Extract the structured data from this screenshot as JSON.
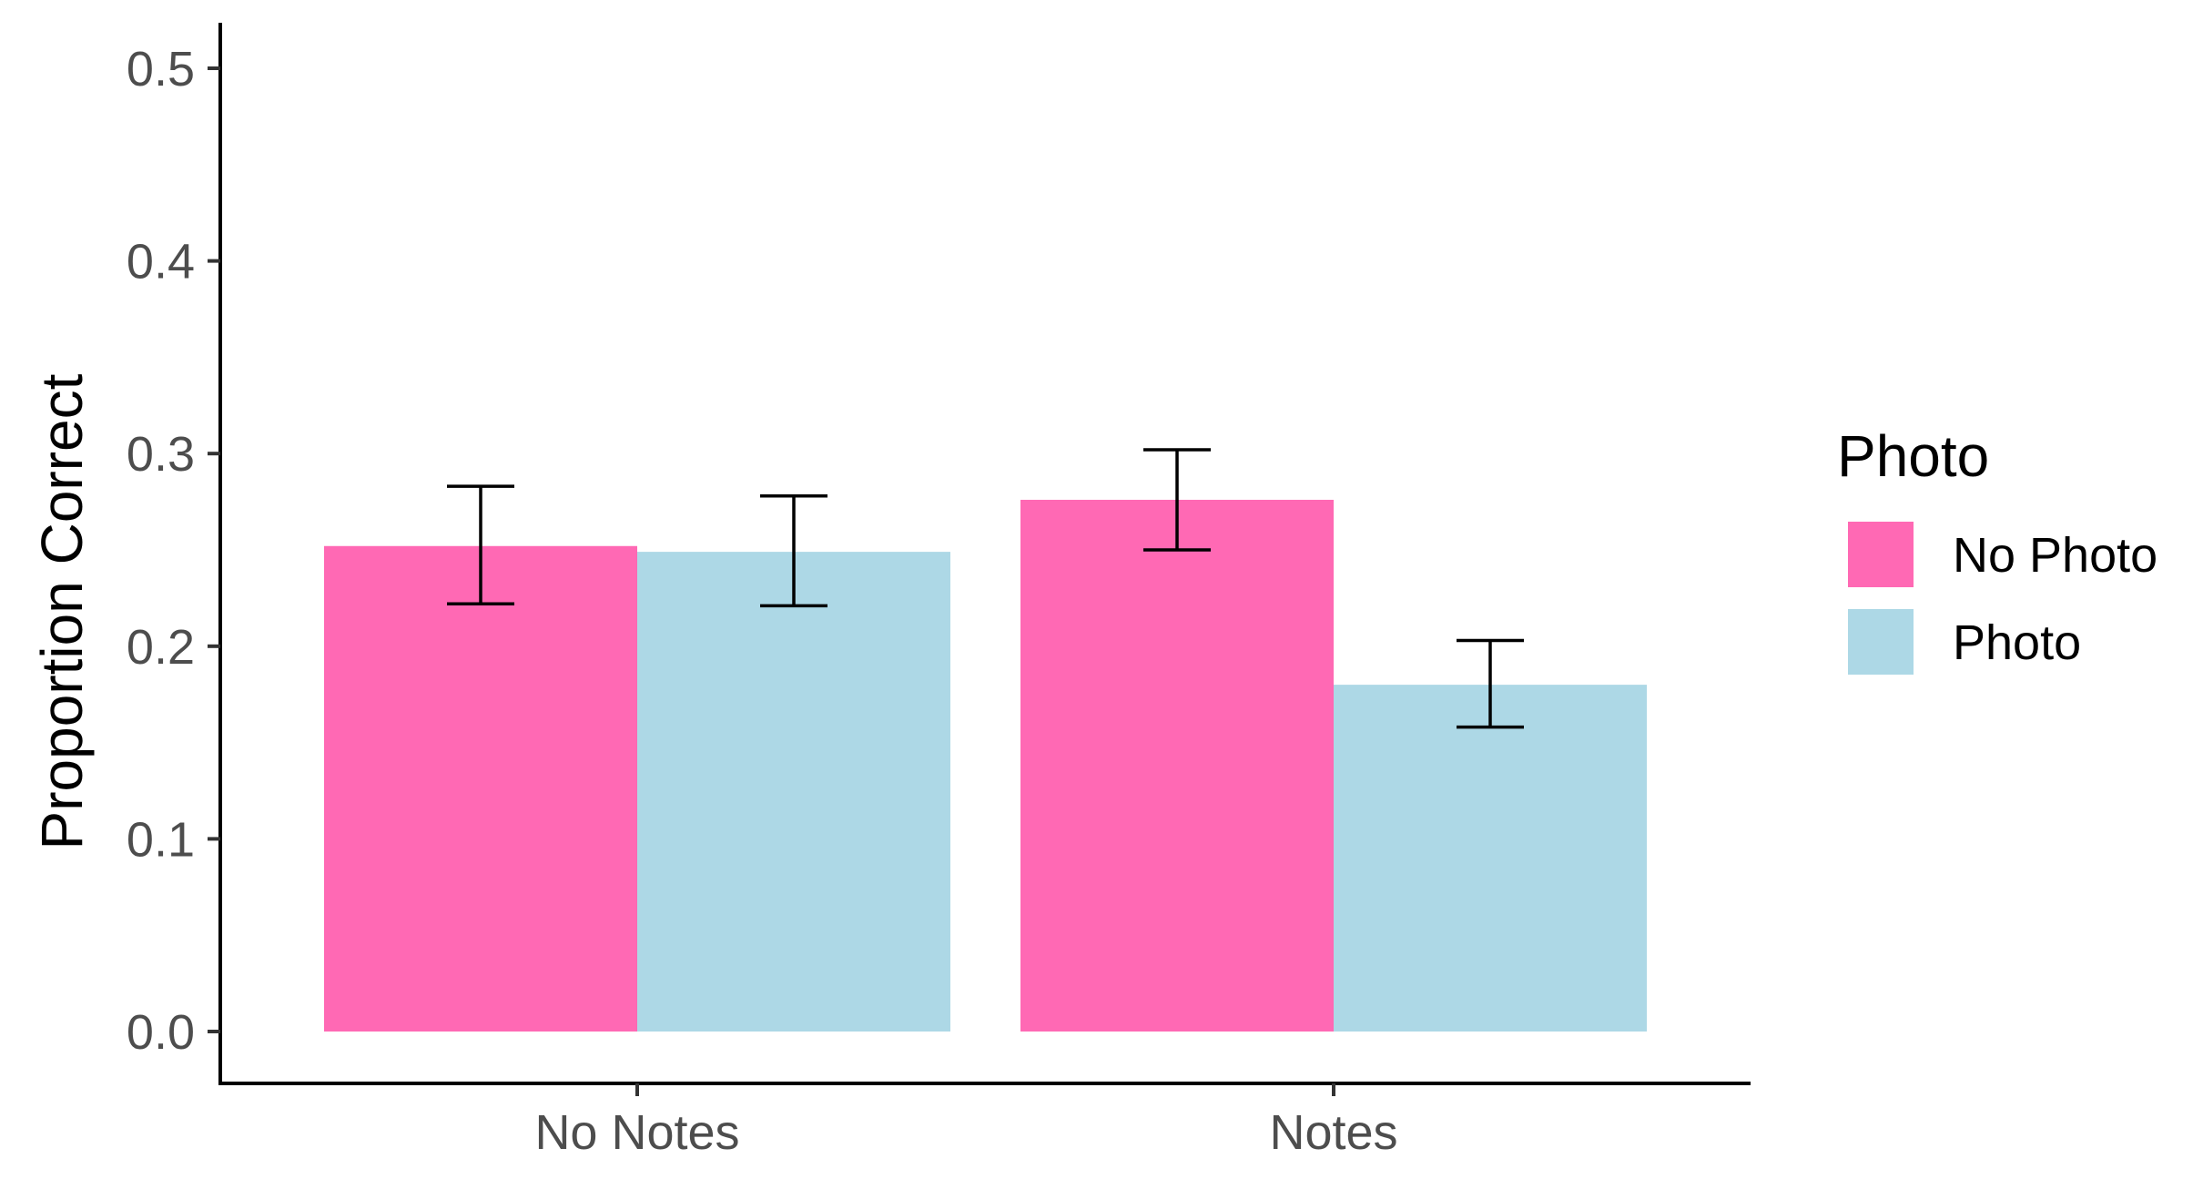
{
  "chart_data": {
    "type": "bar",
    "ylabel": "Proportion Correct",
    "xlabel": "",
    "categories": [
      "No Notes",
      "Notes"
    ],
    "ylim": [
      0,
      0.5
    ],
    "yticks": [
      "0.0",
      "0.1",
      "0.2",
      "0.3",
      "0.4",
      "0.5"
    ],
    "grid": false,
    "legend": {
      "title": "Photo",
      "placement": "right"
    },
    "series": [
      {
        "name": "No Photo",
        "color": "#ff69b4",
        "values": [
          0.252,
          0.276
        ],
        "error_low": [
          0.222,
          0.25
        ],
        "error_high": [
          0.283,
          0.302
        ]
      },
      {
        "name": "Photo",
        "color": "#add8e6",
        "values": [
          0.249,
          0.18
        ],
        "error_low": [
          0.221,
          0.158
        ],
        "error_high": [
          0.278,
          0.203
        ]
      }
    ]
  }
}
